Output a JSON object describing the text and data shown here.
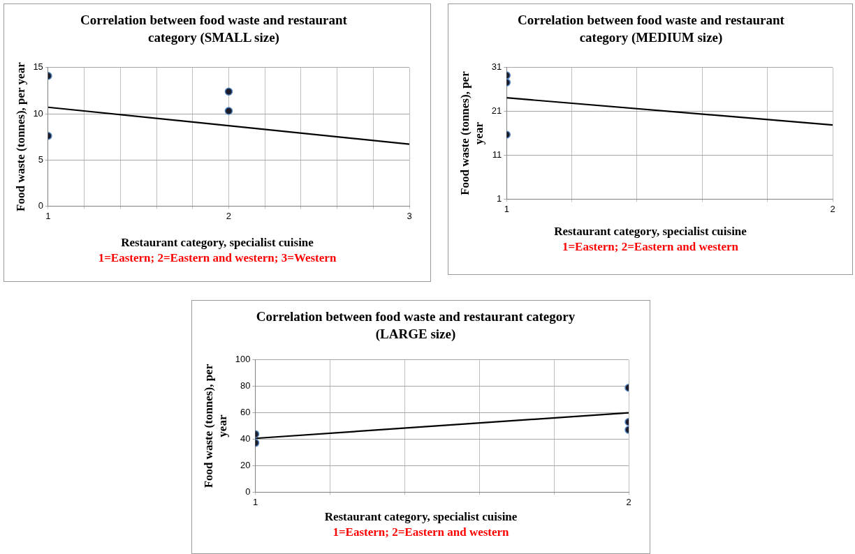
{
  "chart_data": [
    {
      "type": "scatter",
      "title": "Correlation between food waste and restaurant category (SMALL size)",
      "xlabel": "Restaurant category, specialist cuisine",
      "ylabel": "Food waste (tonnes), per year",
      "annotations": [
        "1=Eastern; 2=Eastern and western; 3=Western"
      ],
      "xlim": [
        1,
        3
      ],
      "xticks": [
        1,
        {
          "value": 1.2,
          "label": null
        },
        {
          "value": 1.4,
          "label": null
        },
        {
          "value": 1.6,
          "label": null
        },
        {
          "value": 1.8,
          "label": null
        },
        2,
        {
          "value": 2.2,
          "label": null
        },
        {
          "value": 2.4,
          "label": null
        },
        {
          "value": 2.6,
          "label": null
        },
        {
          "value": 2.8,
          "label": null
        },
        3
      ],
      "ylim": [
        0,
        15
      ],
      "yticks": [
        0,
        5,
        10,
        15
      ],
      "grid": true,
      "series": [
        {
          "type": "scatter",
          "x": [
            1,
            1,
            2,
            2
          ],
          "values": [
            14.1,
            7.6,
            12.4,
            10.3
          ],
          "color": "#1c1c2a",
          "marker": "circle"
        },
        {
          "type": "line",
          "x": [
            1,
            3
          ],
          "values": [
            10.7,
            6.7
          ],
          "color": "#000000",
          "marker": "none",
          "line_style": "solid"
        }
      ]
    },
    {
      "type": "scatter",
      "title": "Correlation between food waste and restaurant category (MEDIUM size)",
      "xlabel": "Restaurant category, specialist cuisine",
      "ylabel": "Food waste (tonnes), per year",
      "annotations": [
        "1=Eastern; 2=Eastern and western"
      ],
      "xlim": [
        1,
        2
      ],
      "xticks": [
        1,
        {
          "value": 1.2,
          "label": null
        },
        {
          "value": 1.4,
          "label": null
        },
        {
          "value": 1.6,
          "label": null
        },
        {
          "value": 1.8,
          "label": null
        },
        2
      ],
      "ylim": [
        1,
        31
      ],
      "yticks": [
        1,
        11,
        21,
        31
      ],
      "grid": true,
      "series": [
        {
          "type": "scatter",
          "x": [
            1,
            1,
            1
          ],
          "values": [
            29.2,
            27.6,
            15.7
          ],
          "color": "#1c1c2a",
          "marker": "circle"
        },
        {
          "type": "line",
          "x": [
            1,
            2
          ],
          "values": [
            24.1,
            17.9
          ],
          "color": "#000000",
          "marker": "none",
          "line_style": "solid"
        }
      ]
    },
    {
      "type": "scatter",
      "title": "Correlation between food waste and restaurant category (LARGE size)",
      "xlabel": "Restaurant category, specialist cuisine",
      "ylabel": "Food waste (tonnes), per year",
      "annotations": [
        "1=Eastern; 2=Eastern and western"
      ],
      "xlim": [
        1,
        2
      ],
      "xticks": [
        1,
        {
          "value": 1.2,
          "label": null
        },
        {
          "value": 1.4,
          "label": null
        },
        {
          "value": 1.6,
          "label": null
        },
        {
          "value": 1.8,
          "label": null
        },
        2
      ],
      "ylim": [
        0,
        100
      ],
      "yticks": [
        0,
        20,
        40,
        60,
        80,
        100
      ],
      "grid": true,
      "series": [
        {
          "type": "scatter",
          "x": [
            1,
            1,
            2,
            2,
            2
          ],
          "values": [
            43.9,
            37.2,
            78.9,
            53.1,
            47.1
          ],
          "color": "#1c1c2a",
          "marker": "circle"
        },
        {
          "type": "line",
          "x": [
            1,
            2
          ],
          "values": [
            40.7,
            60
          ],
          "color": "#000000",
          "marker": "none",
          "line_style": "solid"
        }
      ]
    }
  ]
}
